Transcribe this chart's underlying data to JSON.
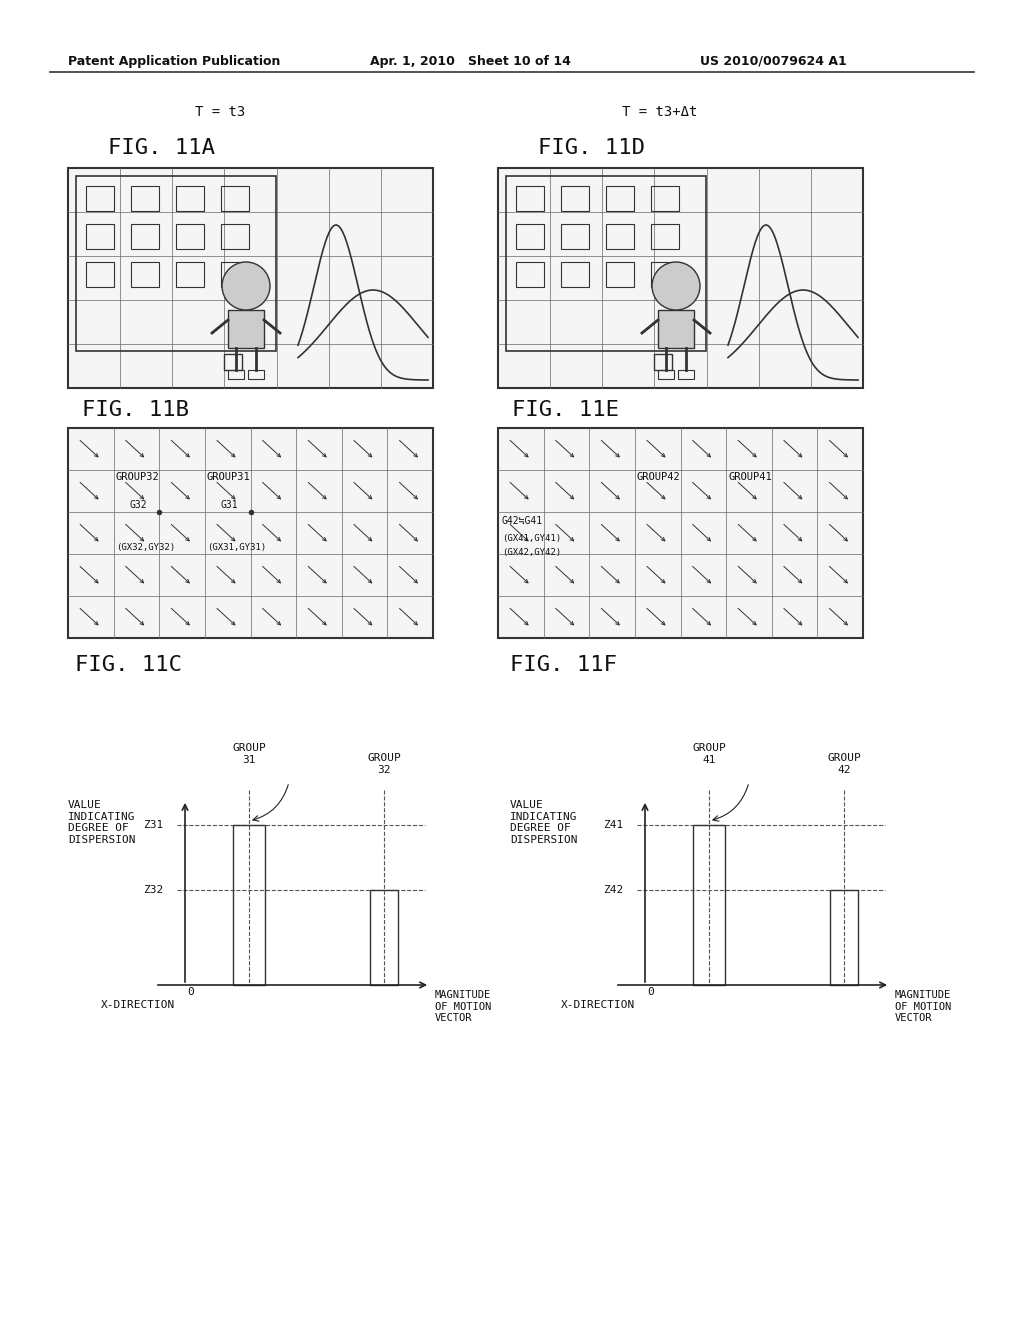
{
  "bg_color": "#ffffff",
  "header_left": "Patent Application Publication",
  "header_mid": "Apr. 1, 2010   Sheet 10 of 14",
  "header_right": "US 2010/0079624 A1",
  "time_left": "T = t3",
  "time_right": "T = t3+Δt",
  "fig11A": "FIG. 11A",
  "fig11B": "FIG. 11B",
  "fig11C": "FIG. 11C",
  "fig11D": "FIG. 11D",
  "fig11E": "FIG. 11E",
  "fig11F": "FIG. 11F",
  "arrow_color": "#222222",
  "grid_color": "#666666",
  "box_color": "#333333",
  "text_color": "#111111",
  "dashed_color": "#555555"
}
